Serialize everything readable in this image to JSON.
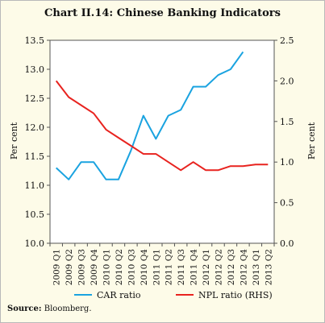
{
  "chart_data": {
    "type": "line",
    "title": "Chart II.14: Chinese Banking Indicators",
    "categories": [
      "2009 Q1",
      "2009 Q2",
      "2009 Q3",
      "2009 Q4",
      "2010 Q1",
      "2010 Q2",
      "2010 Q3",
      "2010 Q4",
      "2011 Q1",
      "2011 Q2",
      "2011 Q3",
      "2011 Q4",
      "2012 Q1",
      "2012 Q2",
      "2012 Q3",
      "2012 Q4",
      "2013 Q1",
      "2013 Q2"
    ],
    "ylabel_left": "Per cent",
    "ylabel_right": "Per cent",
    "ylim_left": [
      10.0,
      13.5
    ],
    "ylim_right": [
      0.0,
      2.5
    ],
    "yticks_left": [
      "10.0",
      "10.5",
      "11.0",
      "11.5",
      "12.0",
      "12.5",
      "13.0",
      "13.5"
    ],
    "yticks_right": [
      "0.0",
      "0.5",
      "1.0",
      "1.5",
      "2.0",
      "2.5"
    ],
    "series": [
      {
        "name": "CAR ratio",
        "axis": "left",
        "color": "#1aa3e0",
        "values": [
          11.3,
          11.1,
          11.4,
          11.4,
          11.1,
          11.1,
          11.6,
          12.2,
          11.8,
          12.2,
          12.3,
          12.7,
          12.7,
          12.9,
          13.0,
          13.3,
          null,
          null
        ]
      },
      {
        "name": "NPL ratio (RHS)",
        "axis": "right",
        "color": "#e8231f",
        "values": [
          2.0,
          1.8,
          1.7,
          1.6,
          1.4,
          1.3,
          1.2,
          1.1,
          1.1,
          1.0,
          0.9,
          1.0,
          0.9,
          0.9,
          0.95,
          0.95,
          0.97,
          0.97
        ]
      }
    ],
    "legend_position": "bottom"
  },
  "source_label": "Source:",
  "source_text": " Bloomberg."
}
